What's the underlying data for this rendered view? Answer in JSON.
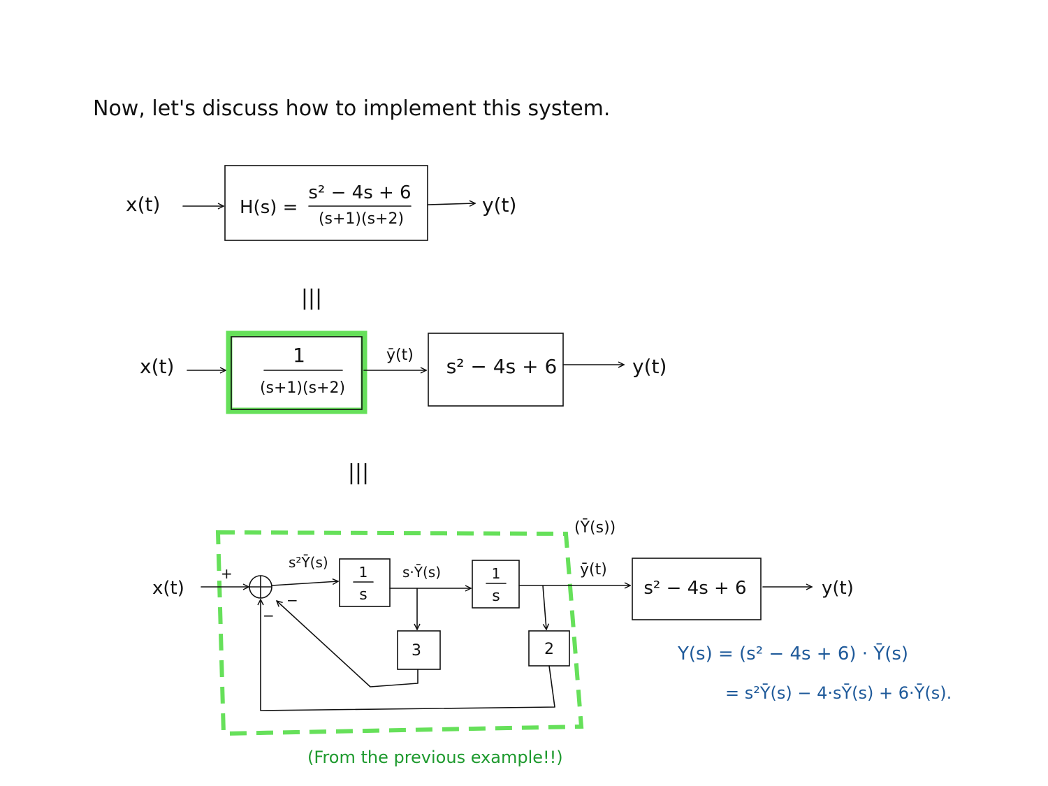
{
  "heading": "Now, let's discuss how to implement this system.",
  "equiv_symbol": "|||",
  "colors": {
    "ink": "#111111",
    "highlight_green": "#66e05a",
    "note_green": "#1e9a2e",
    "equation_blue": "#1f5a9a"
  },
  "diagram1": {
    "input": "x(t)",
    "block_label": "H(s) =",
    "numerator": "s² − 4s + 6",
    "denominator": "(s+1)(s+2)",
    "output": "y(t)"
  },
  "diagram2": {
    "input": "x(t)",
    "block1_numerator": "1",
    "block1_denominator": "(s+1)(s+2)",
    "intermediate": "ȳ(t)",
    "block2": "s² − 4s + 6",
    "output": "y(t)"
  },
  "diagram3": {
    "input": "x(t)",
    "plus_sign": "+",
    "minus_sign_1": "−",
    "minus_sign_2": "−",
    "s2_signal": "s²Ȳ(s)",
    "integrator_1_num": "1",
    "integrator_1_den": "s",
    "s_signal": "s·Ȳ(s)",
    "integrator_2_num": "1",
    "integrator_2_den": "s",
    "gain_1": "3",
    "gain_2": "2",
    "ybar_s": "(Ȳ(s))",
    "ybar_t": "ȳ(t)",
    "block": "s² − 4s + 6",
    "output": "y(t)",
    "note": "(From the previous example!!)"
  },
  "equations": {
    "line1": "Y(s) = (s² − 4s + 6) · Ȳ(s)",
    "line2": "= s²Ȳ(s) − 4·sȲ(s) + 6·Ȳ(s)."
  }
}
